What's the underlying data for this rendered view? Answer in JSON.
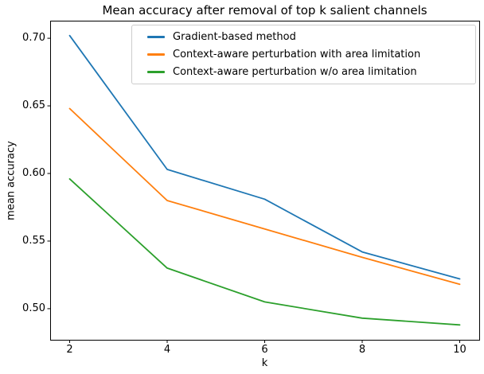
{
  "chart_data": {
    "type": "line",
    "title": "Mean accuracy after removal of top k salient channels",
    "xlabel": "k",
    "ylabel": "mean accuracy",
    "x": [
      2,
      4,
      6,
      8,
      10
    ],
    "series": [
      {
        "name": "Gradient-based method",
        "color": "#1f77b4",
        "values": [
          0.702,
          0.603,
          0.581,
          0.542,
          0.522
        ]
      },
      {
        "name": "Context-aware perturbation with area limitation",
        "color": "#ff7f0e",
        "values": [
          0.648,
          0.58,
          0.559,
          0.538,
          0.518
        ]
      },
      {
        "name": "Context-aware perturbation w/o area limitation",
        "color": "#2ca02c",
        "values": [
          0.596,
          0.53,
          0.505,
          0.493,
          0.488
        ]
      }
    ],
    "xlim": [
      1.6,
      10.4
    ],
    "ylim": [
      0.477,
      0.713
    ],
    "x_ticks": [
      2,
      4,
      6,
      8,
      10
    ],
    "y_ticks": [
      0.5,
      0.55,
      0.6,
      0.65,
      0.7
    ],
    "grid": false,
    "legend_position": "upper center",
    "axes_color": "#000000",
    "background_color": "#ffffff"
  }
}
